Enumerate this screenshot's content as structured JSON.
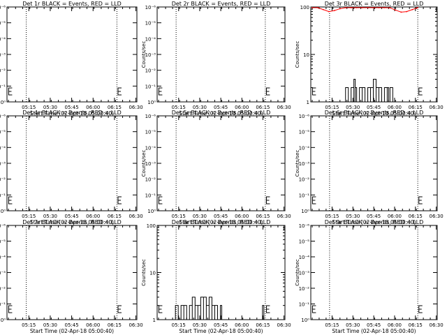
{
  "chart_data": [
    {
      "type": "line",
      "title": "Det 1r BLACK = Events, RED = LLD",
      "xlabel": "Start Time (02-Apr-18 05:00:40)",
      "ylabel": "Counts/sec",
      "x_ticks": [
        "05:15",
        "05:30",
        "05:45",
        "06:00",
        "06:15",
        "06:30"
      ],
      "y_scale": "log",
      "y_ticks": [
        "10⁰",
        "10⁻¹",
        "10⁻²",
        "10⁻³",
        "10⁻⁴",
        "10⁻⁵",
        "10⁻⁶"
      ],
      "marker_lines_minutes": [
        12.5,
        76
      ],
      "e_marker_minutes": [
        -0.3,
        76.3
      ],
      "series": []
    },
    {
      "type": "line",
      "title": "Det 2r BLACK = Events, RED = LLD",
      "xlabel": "Start Time (02-Apr-18 05:00:40)",
      "ylabel": "Counts/sec",
      "x_ticks": [
        "05:15",
        "05:30",
        "05:45",
        "06:00",
        "06:15",
        "06:30"
      ],
      "y_scale": "log",
      "y_ticks": [
        "10⁰",
        "10⁻¹",
        "10⁻²",
        "10⁻³",
        "10⁻⁴",
        "10⁻⁵",
        "10⁻⁶"
      ],
      "marker_lines_minutes": [
        12.5,
        76
      ],
      "e_marker_minutes": [
        -0.3,
        76.3
      ],
      "series": []
    },
    {
      "type": "line",
      "title": "Det 3r BLACK = Events, RED = LLD",
      "xlabel": "Start Time (02-Apr-18 05:00:40)",
      "ylabel": "Counts/sec",
      "x_ticks": [
        "05:15",
        "05:30",
        "05:45",
        "06:00",
        "06:15",
        "06:30"
      ],
      "y_scale": "log",
      "y_ticks": [
        "1",
        "10",
        "100"
      ],
      "ylim": [
        1,
        100
      ],
      "marker_lines_minutes": [
        12.5,
        76
      ],
      "e_marker_minutes": [
        -0.3,
        76.3
      ],
      "series": [
        {
          "color": "#ff0000",
          "x": [
            0,
            4,
            8,
            12,
            16,
            20,
            24,
            28,
            32,
            36,
            40,
            44,
            48,
            52,
            56,
            60,
            64,
            68,
            72,
            76
          ],
          "values": [
            100,
            97,
            88,
            80,
            84,
            92,
            100,
            100,
            100,
            100,
            100,
            100,
            100,
            100,
            96,
            86,
            78,
            80,
            88,
            97
          ]
        },
        {
          "color": "#000000",
          "x": [
            24,
            26,
            28,
            30,
            31,
            32,
            34,
            36,
            38,
            40,
            42,
            44,
            46,
            48,
            50,
            52,
            54,
            55,
            56,
            58
          ],
          "values": [
            2,
            1,
            2,
            3,
            2,
            1,
            2,
            2,
            1,
            2,
            2,
            3,
            2,
            2,
            1,
            2,
            2,
            1,
            2,
            1
          ]
        }
      ]
    },
    {
      "type": "line",
      "title": "Det 4r BLACK = Events, RED = LLD",
      "xlabel": "Start Time (02-Apr-18 05:00:40)",
      "ylabel": "Counts/sec",
      "x_ticks": [
        "05:15",
        "05:30",
        "05:45",
        "06:00",
        "06:15",
        "06:30"
      ],
      "y_scale": "log",
      "y_ticks": [
        "10⁰",
        "10⁻¹",
        "10⁻²",
        "10⁻³",
        "10⁻⁴",
        "10⁻⁵",
        "10⁻⁶"
      ],
      "marker_lines_minutes": [
        12.5,
        76
      ],
      "e_marker_minutes": [
        -0.3,
        76.3
      ],
      "series": []
    },
    {
      "type": "line",
      "title": "Det 5r BLACK = Events, RED = LLD",
      "xlabel": "Start Time (02-Apr-18 05:00:40)",
      "ylabel": "Counts/sec",
      "x_ticks": [
        "05:15",
        "05:30",
        "05:45",
        "06:00",
        "06:15",
        "06:30"
      ],
      "y_scale": "log",
      "y_ticks": [
        "10⁰",
        "10⁻¹",
        "10⁻²",
        "10⁻³",
        "10⁻⁴",
        "10⁻⁵",
        "10⁻⁶"
      ],
      "marker_lines_minutes": [
        12.5,
        76
      ],
      "e_marker_minutes": [
        -0.3,
        76.3
      ],
      "series": []
    },
    {
      "type": "line",
      "title": "Det 6r BLACK = Events, RED = LLD",
      "xlabel": "Start Time (02-Apr-18 05:00:40)",
      "ylabel": "Counts/sec",
      "x_ticks": [
        "05:15",
        "05:30",
        "05:45",
        "06:00",
        "06:15",
        "06:30"
      ],
      "y_scale": "log",
      "y_ticks": [
        "10⁰",
        "10⁻¹",
        "10⁻²",
        "10⁻³",
        "10⁻⁴",
        "10⁻⁵",
        "10⁻⁶"
      ],
      "marker_lines_minutes": [
        12.5,
        76
      ],
      "e_marker_minutes": [
        -0.3,
        76.3
      ],
      "series": []
    },
    {
      "type": "line",
      "title": "Det 7r BLACK = Events, RED = LLD",
      "xlabel": "Start Time (02-Apr-18 05:00:40)",
      "ylabel": "Counts/sec",
      "x_ticks": [
        "05:15",
        "05:30",
        "05:45",
        "06:00",
        "06:15",
        "06:30"
      ],
      "y_scale": "log",
      "y_ticks": [
        "10⁰",
        "10⁻¹",
        "10⁻²",
        "10⁻³",
        "10⁻⁴",
        "10⁻⁵",
        "10⁻⁶"
      ],
      "marker_lines_minutes": [
        12.5,
        76
      ],
      "e_marker_minutes": [
        -0.3,
        76.3
      ],
      "series": []
    },
    {
      "type": "line",
      "title": "Det 8r BLACK = Events, RED = LLD",
      "xlabel": "Start Time (02-Apr-18 05:00:40)",
      "ylabel": "Counts/sec",
      "x_ticks": [
        "05:15",
        "05:30",
        "05:45",
        "06:00",
        "06:15",
        "06:30"
      ],
      "y_scale": "log",
      "y_ticks": [
        "1",
        "10",
        "100"
      ],
      "ylim": [
        1,
        100
      ],
      "marker_lines_minutes": [
        12.5,
        76
      ],
      "e_marker_minutes": [
        -0.3,
        76.3
      ],
      "series": [
        {
          "color": "#000000",
          "x": [
            10,
            12,
            14,
            16,
            18,
            20,
            22,
            24,
            26,
            28,
            30,
            32,
            34,
            36,
            38,
            40,
            42,
            44,
            45,
            46,
            74
          ],
          "values": [
            1,
            2,
            1,
            2,
            2,
            1,
            2,
            3,
            2,
            2,
            3,
            3,
            2,
            3,
            2,
            2,
            1,
            2,
            1,
            1,
            2
          ]
        }
      ]
    },
    {
      "type": "line",
      "title": "Det 9r BLACK = Events, RED = LLD",
      "xlabel": "Start Time (02-Apr-18 05:00:40)",
      "ylabel": "Counts/sec",
      "x_ticks": [
        "05:15",
        "05:30",
        "05:45",
        "06:00",
        "06:15",
        "06:30"
      ],
      "y_scale": "log",
      "y_ticks": [
        "10⁰",
        "10⁻¹",
        "10⁻²",
        "10⁻³",
        "10⁻⁴",
        "10⁻⁵",
        "10⁻⁶"
      ],
      "marker_lines_minutes": [
        12.5,
        76
      ],
      "e_marker_minutes": [
        -0.3,
        76.3
      ],
      "series": []
    }
  ]
}
